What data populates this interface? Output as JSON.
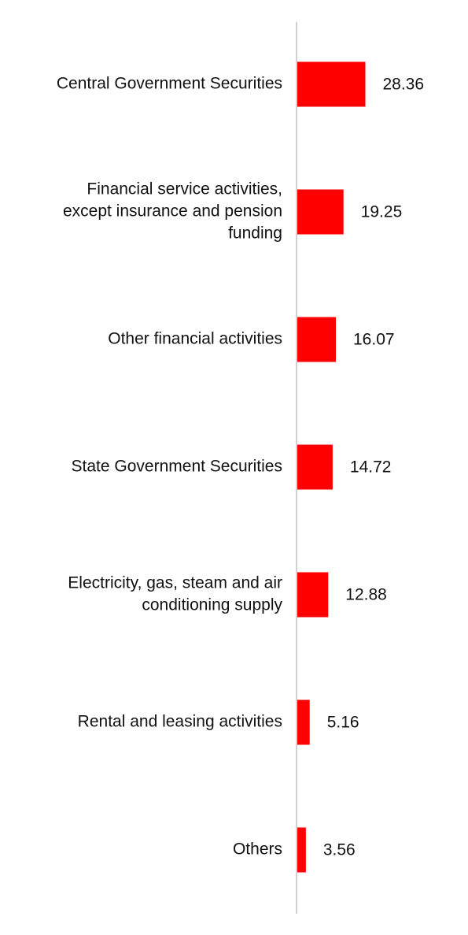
{
  "chart_data": {
    "type": "bar",
    "orientation": "horizontal",
    "title": "",
    "xlabel": "",
    "ylabel": "",
    "bar_color": "#ff0000",
    "axis_color": "#d0d0d0",
    "grid": false,
    "legend": "none",
    "xlim": [
      0,
      100
    ],
    "categories": [
      [
        "Central Government Securities"
      ],
      [
        "Financial service activities,",
        "except insurance and pension",
        "funding"
      ],
      [
        "Other financial activities"
      ],
      [
        "State Government Securities"
      ],
      [
        "Electricity, gas, steam and air",
        "conditioning supply"
      ],
      [
        "Rental and leasing activities"
      ],
      [
        "Others"
      ]
    ],
    "values": [
      28.36,
      19.25,
      16.07,
      14.72,
      12.88,
      5.16,
      3.56
    ],
    "value_labels": [
      "28.36",
      "19.25",
      "16.07",
      "14.72",
      "12.88",
      "5.16",
      "3.56"
    ]
  }
}
